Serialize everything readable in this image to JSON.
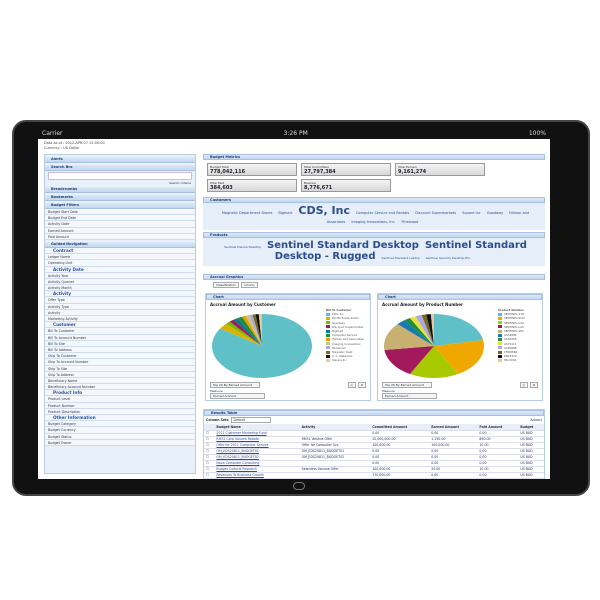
{
  "device": {
    "carrier": "Carrier",
    "time": "3:26 PM",
    "battery": "100%"
  },
  "meta": {
    "line1": "Data as of : 2012-APR-07 12:00:00",
    "line2": "Currency : US Dollar"
  },
  "sidebar": {
    "sections": [
      {
        "title": "Alerts",
        "items": []
      },
      {
        "title": "Search Bro",
        "items": [],
        "link": "Search criteria"
      },
      {
        "title": "Breadcrumbs",
        "items": []
      },
      {
        "title": "Bookmarks",
        "items": []
      },
      {
        "title": "Budget Filters",
        "items": [
          "Budget Start Date",
          "Budget End Date",
          "Activity Date",
          "Earned Amount",
          "Paid Amount"
        ]
      },
      {
        "title": "Guided Navigation",
        "items": [
          {
            "g": "Contract"
          },
          "Ledger Name",
          "Operating Unit",
          {
            "g": "Activity Date"
          },
          "Activity Year",
          "Activity Quarter",
          "Activity Month",
          {
            "g": "Activity"
          },
          "Offer Type",
          "Activity Type",
          "Activity",
          "Marketing Activity",
          {
            "g": "Customer"
          },
          "Bill To Customer",
          "Bill To Account Number",
          "Bill To Site",
          "Bill To Address",
          "Ship To Customer",
          "Ship To Account Number",
          "Ship To Site",
          "Ship To Address",
          "Beneficiary Name",
          "Beneficiary Account Number",
          {
            "g": "Product Info"
          },
          "Product Level",
          "Product Number",
          "Product Description",
          {
            "g": "Other Information"
          },
          "Budget Category",
          "Budget Currency",
          "Budget Status",
          "Budget Owner"
        ]
      }
    ]
  },
  "metrics": {
    "title": "Budget Metrics",
    "tiles": [
      {
        "label": "Budget Total",
        "value": "778,042,116"
      },
      {
        "label": "Total Committed",
        "value": "27,797,384"
      },
      {
        "label": "Total Earned",
        "value": "9,161,274"
      },
      {
        "label": "Total Paid",
        "value": "384,603"
      },
      {
        "label": "Balance",
        "value": "8,776,671"
      }
    ]
  },
  "customers": {
    "title": "Customers",
    "tags": [
      {
        "t": "Magnetic Department Stores",
        "s": 3.5
      },
      {
        "t": "Bigmart",
        "s": 3.5
      },
      {
        "t": "CDS, Inc",
        "s": 11
      },
      {
        "t": "Computer Service and Rentals",
        "s": 3.5
      },
      {
        "t": "Discount Supermarkets",
        "s": 3.5
      },
      {
        "t": "Square Inc",
        "s": 3.5
      },
      {
        "t": "Goodway",
        "s": 3.5
      },
      {
        "t": "Hilman and Associates",
        "s": 3.5
      },
      {
        "t": "Imaging Innovations, Inc.",
        "s": 3.5
      },
      {
        "t": "Pinewood",
        "s": 3.5
      }
    ]
  },
  "products": {
    "title": "Products",
    "tags": [
      {
        "t": "Sentinel Deluxe Desktop",
        "s": 3
      },
      {
        "t": "Sentinel Standard Desktop",
        "s": 10
      },
      {
        "t": "Sentinel Standard Desktop - Rugged",
        "s": 10
      },
      {
        "t": "Sentinel Standard Laptop",
        "s": 3
      },
      {
        "t": "Sentinel Security Desktop Pro",
        "s": 3
      }
    ]
  },
  "graphics": {
    "title": "Accrual Graphics",
    "tabs": [
      "Classification",
      "Activity"
    ]
  },
  "charts": [
    {
      "panel": "Chart",
      "title": "Accrual Amount by Customer",
      "legend_title": "Bill To Customer",
      "legend": [
        "CDS, Inc",
        "Pacific Trade Sector",
        "Goodway",
        "Discount Supermarket",
        "Bigmart",
        "Computer Service",
        "Hilman and Associates",
        "Imaging Innovations",
        "Pinewood",
        "Magnetic Dept",
        "A. C. Networks",
        "Square Inc"
      ],
      "values": [
        82,
        3,
        1.5,
        1.5,
        1.5,
        1.5,
        1.2,
        1.2,
        1,
        1,
        1,
        1
      ],
      "colors": [
        "#5fc0c8",
        "#d6b400",
        "#7ab800",
        "#a3195b",
        "#0a7a8a",
        "#1e8f3c",
        "#e8a200",
        "#d3c27d",
        "#a9a9e8",
        "#7b6a1a",
        "#111111",
        "#e8c8a0"
      ],
      "top": "Top 20 By Earned Amount",
      "measure_label": "Measure",
      "measure": "Earned Amount"
    },
    {
      "panel": "Chart",
      "title": "Accrual Amount by Product Number",
      "legend_title": "Product Number",
      "legend": [
        "SENTINEL-STD",
        "SENTINEL-RUG",
        "SENTINEL-DLX",
        "SENTINEL-LAP",
        "SENTINEL-SEC",
        "AS54888",
        "AS54999",
        "AS72111",
        "AS92888",
        "CM08866",
        "KB23412",
        "MS-5004"
      ],
      "values": [
        22,
        20,
        16,
        15,
        14,
        3,
        2,
        2,
        2,
        1.5,
        1.5,
        1
      ],
      "colors": [
        "#5fc0c8",
        "#f0a800",
        "#a8c800",
        "#a3195b",
        "#c8b070",
        "#1a7ab0",
        "#1e8f3c",
        "#e8e040",
        "#a9a9e8",
        "#7b6a1a",
        "#111111",
        "#e8c8a0"
      ],
      "top": "Top 20 By Earned Amount",
      "measure_label": "Measure",
      "measure": "Earned Amount"
    }
  ],
  "results": {
    "title": "Results Table",
    "column_sets_label": "Column Sets",
    "column_set": "Default",
    "actions": "Actions",
    "columns": [
      "Budget Name",
      "Activity",
      "Committed Amount",
      "Earned Amount",
      "Paid Amount",
      "Budget"
    ],
    "rows": [
      [
        "2011 Customer Marketing Fund",
        "",
        "0.00",
        "0.00",
        "0.00",
        "US BUD"
      ],
      [
        "RM31 Corp Volume Rebate",
        "RM31 Volume Offer",
        "20,000,000.00",
        "1,150.00",
        "890.00",
        "US BUD"
      ],
      [
        "Offer for 2011 Computer Service",
        "Offer for Computer Svc",
        "100,000.00",
        "100,000.00",
        "10.00",
        "US BUD"
      ],
      [
        "OM_EDS20811_BUDGET01",
        "OM_EDS20811_BUDGET01",
        "0.00",
        "0.00",
        "0.00",
        "US BUD"
      ],
      [
        "OM_EDS20811_BUDGET02",
        "OM_EDS20811_BUDGET02",
        "0.00",
        "0.00",
        "0.00",
        "US BUD"
      ],
      [
        "Nova Computer Consulting",
        "",
        "0.00",
        "0.00",
        "0.00",
        "US BUD"
      ],
      [
        "Budget Cultural Research",
        "Seamless Volume Offer",
        "100,000.00",
        "20.00",
        "10.00",
        "US BUD"
      ],
      [
        "Revenues To Business Growth",
        "",
        "770,000.00",
        "0.00",
        "0.00",
        "US BUD"
      ]
    ]
  }
}
